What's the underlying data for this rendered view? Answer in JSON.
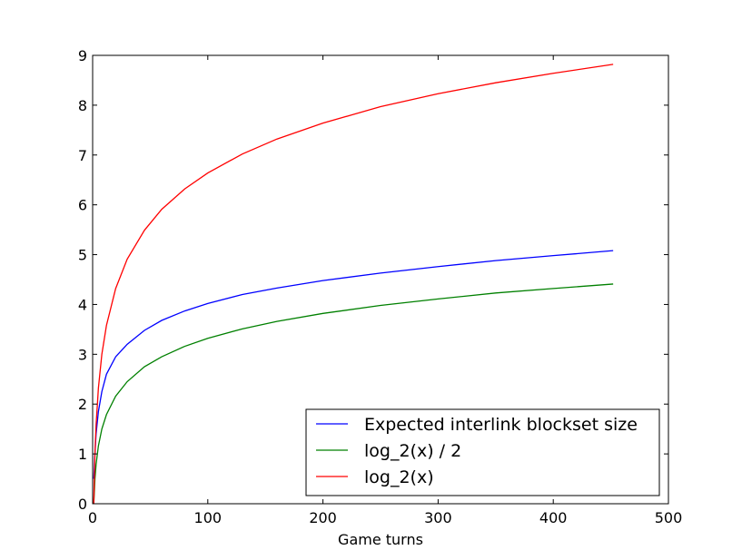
{
  "chart_data": {
    "type": "line",
    "title": "",
    "xlabel": "Game turns",
    "ylabel": "",
    "xlim": [
      0,
      500
    ],
    "ylim": [
      0,
      9
    ],
    "xticks": [
      0,
      100,
      200,
      300,
      400,
      500
    ],
    "yticks": [
      0,
      1,
      2,
      3,
      4,
      5,
      6,
      7,
      8,
      9
    ],
    "grid": false,
    "legend_position": "lower-right",
    "series": [
      {
        "name": "Expected interlink blockset size",
        "color": "#0000ff",
        "x": [
          1,
          2,
          3,
          5,
          8,
          12,
          20,
          30,
          45,
          60,
          80,
          100,
          130,
          160,
          200,
          250,
          300,
          350,
          400,
          452
        ],
        "y": [
          0.5,
          1.0,
          1.4,
          1.85,
          2.25,
          2.6,
          2.95,
          3.2,
          3.48,
          3.68,
          3.87,
          4.02,
          4.2,
          4.33,
          4.48,
          4.63,
          4.76,
          4.88,
          4.98,
          5.08
        ]
      },
      {
        "name": "log_2(x) / 2",
        "color": "#008000",
        "x": [
          1,
          2,
          3,
          5,
          8,
          12,
          20,
          30,
          45,
          60,
          80,
          100,
          130,
          160,
          200,
          250,
          300,
          350,
          400,
          452
        ],
        "y": [
          0.0,
          0.5,
          0.79,
          1.16,
          1.5,
          1.79,
          2.16,
          2.45,
          2.75,
          2.95,
          3.16,
          3.32,
          3.51,
          3.66,
          3.82,
          3.98,
          4.11,
          4.23,
          4.32,
          4.41
        ]
      },
      {
        "name": "log_2(x)",
        "color": "#ff0000",
        "x": [
          1,
          2,
          3,
          5,
          8,
          12,
          20,
          30,
          45,
          60,
          80,
          100,
          130,
          160,
          200,
          250,
          300,
          350,
          400,
          452
        ],
        "y": [
          0.0,
          1.0,
          1.58,
          2.32,
          3.0,
          3.58,
          4.32,
          4.91,
          5.49,
          5.91,
          6.32,
          6.64,
          7.02,
          7.32,
          7.64,
          7.97,
          8.23,
          8.45,
          8.64,
          8.82
        ]
      }
    ]
  }
}
